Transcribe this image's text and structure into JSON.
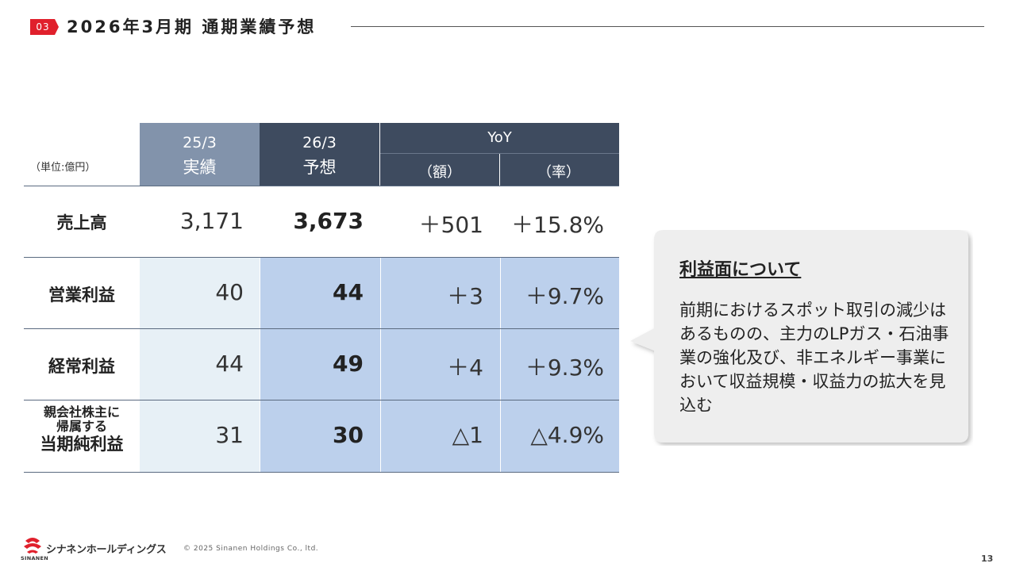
{
  "header": {
    "section_number": "03",
    "title": "2026年3月期 通期業績予想"
  },
  "table": {
    "unit_label": "（単位:億円）",
    "columns": {
      "prev": {
        "period": "25/3",
        "kind": "実績"
      },
      "forecast": {
        "period": "26/3",
        "kind": "予想"
      },
      "yoy": {
        "label": "YoY",
        "amount": "（額）",
        "rate": "（率）"
      }
    },
    "rows": [
      {
        "label": "売上高",
        "prev": "3,171",
        "forecast": "3,673",
        "amount": "＋501",
        "rate": "＋15.8%"
      },
      {
        "label": "営業利益",
        "prev": "40",
        "forecast": "44",
        "amount": "＋3",
        "rate": "＋9.7%"
      },
      {
        "label": "経常利益",
        "prev": "44",
        "forecast": "49",
        "amount": "＋4",
        "rate": "＋9.3%"
      },
      {
        "label_line1": "親会社株主に",
        "label_line2": "帰属する",
        "label_line3": "当期純利益",
        "prev": "31",
        "forecast": "30",
        "amount": "△1",
        "rate": "△4.9%"
      }
    ]
  },
  "callout": {
    "heading": "利益面について",
    "body": "前期におけるスポット取引の減少はあるものの、主力のLPガス・石油事業の強化及び、非エネルギー事業において収益規模・収益力の拡大を見込む"
  },
  "footer": {
    "company_name": "シナネンホールディングス",
    "company_sub": "SINANEN",
    "copyright": "© 2025 Sinanen Holdings Co., ltd.",
    "page_number": "13"
  },
  "colors": {
    "accent_red": "#e0202c",
    "header_dark": "#3e4b5f",
    "header_prev": "#8293ab",
    "prev_bg": "#e7f0f6",
    "forecast_bg": "#bcd0ec"
  }
}
